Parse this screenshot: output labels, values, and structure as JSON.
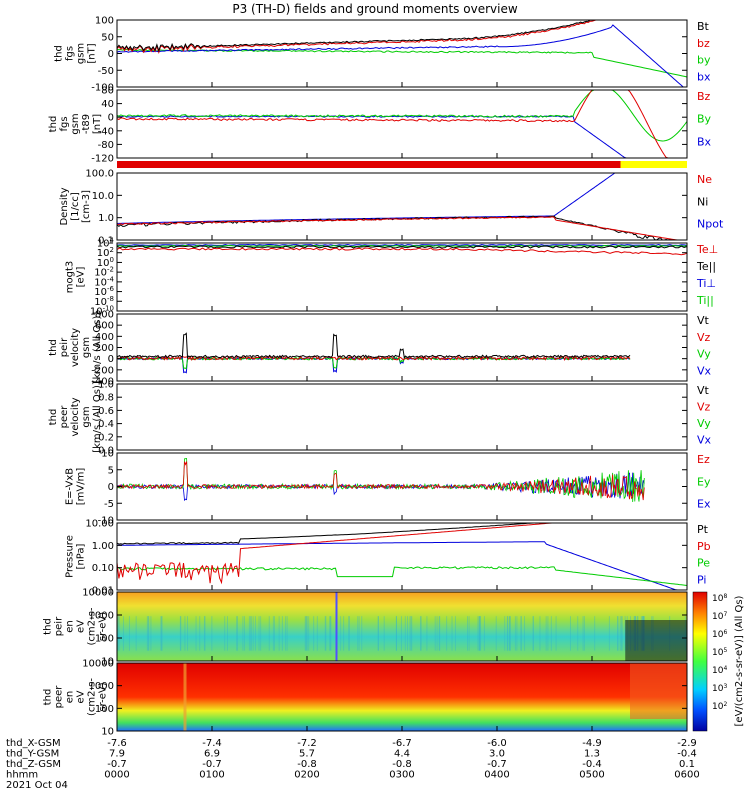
{
  "title": "P3 (TH-D) fields and ground moments overview",
  "colors": {
    "black": "#000000",
    "red": "#e00000",
    "green": "#00cc00",
    "blue": "#0000dd",
    "yellow": "#ffff00"
  },
  "chart_data": [
    {
      "type": "line",
      "ylabel": [
        "thd",
        "fgs",
        "gsm",
        "[nT]"
      ],
      "yticks": [
        "100",
        "50",
        "0",
        "-50",
        "-100"
      ],
      "ylim": [
        -100,
        100
      ],
      "legend": [
        {
          "name": "Bt",
          "color": "black"
        },
        {
          "name": "bz",
          "color": "red"
        },
        {
          "name": "by",
          "color": "green"
        },
        {
          "name": "bx",
          "color": "blue"
        }
      ]
    },
    {
      "type": "line",
      "ylabel": [
        "thd",
        "fgs",
        "gsm",
        "-t89",
        "[nT]"
      ],
      "yticks": [
        "80",
        "40",
        "0",
        "-40",
        "-80",
        "-120"
      ],
      "ylim": [
        -120,
        80
      ],
      "legend": [
        {
          "name": "Bz",
          "color": "red"
        },
        {
          "name": "By",
          "color": "green"
        },
        {
          "name": "Bx",
          "color": "blue"
        }
      ]
    },
    {
      "type": "line",
      "ylabel": [
        "Density",
        "[1/cc]",
        "[cm-3]"
      ],
      "yticks": [
        "100.0",
        "10.0",
        "1.0",
        "0.1"
      ],
      "scale": "log",
      "legend": [
        {
          "name": "Ne",
          "color": "red"
        },
        {
          "name": "Ni",
          "color": "black"
        },
        {
          "name": "Npot",
          "color": "blue"
        }
      ]
    },
    {
      "type": "line",
      "ylabel": [
        "mogt3",
        "[eV]"
      ],
      "yticks": [
        "10^4",
        "10^2",
        "10^0",
        "10^-2",
        "10^-4",
        "10^-6",
        "10^-8",
        "10^-10"
      ],
      "scale": "log",
      "legend": [
        {
          "name": "Te⊥",
          "color": "red"
        },
        {
          "name": "Te||",
          "color": "black"
        },
        {
          "name": "Ti⊥",
          "color": "blue"
        },
        {
          "name": "Ti||",
          "color": "green"
        }
      ]
    },
    {
      "type": "line",
      "ylabel": [
        "thd",
        "peir",
        "velocity",
        "gsm",
        "[km/s (All Qs)]"
      ],
      "yticks": [
        "800",
        "600",
        "400",
        "200",
        "0",
        "-200",
        "-400"
      ],
      "ylim": [
        -400,
        800
      ],
      "legend": [
        {
          "name": "Vt",
          "color": "black"
        },
        {
          "name": "Vz",
          "color": "red"
        },
        {
          "name": "Vy",
          "color": "green"
        },
        {
          "name": "Vx",
          "color": "blue"
        }
      ]
    },
    {
      "type": "line",
      "ylabel": [
        "thd",
        "peer",
        "velocity",
        "gsm",
        "[km/s (All Qs)]"
      ],
      "yticks": [
        "1.0",
        "0.8",
        "0.6",
        "0.4",
        "0.2",
        "0.0"
      ],
      "ylim": [
        0,
        1
      ],
      "legend": [
        {
          "name": "Vt",
          "color": "black"
        },
        {
          "name": "Vz",
          "color": "red"
        },
        {
          "name": "Vy",
          "color": "green"
        },
        {
          "name": "Vx",
          "color": "blue"
        }
      ]
    },
    {
      "type": "line",
      "ylabel": [
        "E=-VxB",
        "[mV/m]"
      ],
      "yticks": [
        "10",
        "5",
        "0",
        "-5",
        "-10"
      ],
      "ylim": [
        -10,
        10
      ],
      "legend": [
        {
          "name": "Ez",
          "color": "red"
        },
        {
          "name": "Ey",
          "color": "green"
        },
        {
          "name": "Ex",
          "color": "blue"
        }
      ]
    },
    {
      "type": "line",
      "ylabel": [
        "Pressure",
        "[nPa]"
      ],
      "yticks": [
        "10.00",
        "1.00",
        "0.10",
        "0.01"
      ],
      "scale": "log",
      "legend": [
        {
          "name": "Pt",
          "color": "black"
        },
        {
          "name": "Pb",
          "color": "red"
        },
        {
          "name": "Pe",
          "color": "green"
        },
        {
          "name": "Pi",
          "color": "blue"
        }
      ]
    },
    {
      "type": "heatmap",
      "ylabel": [
        "thd",
        "peir",
        "en",
        "eV",
        "(cm2-s-",
        "sr-eV)"
      ],
      "yticks": [
        "10000",
        "1000",
        "100",
        "10"
      ],
      "scale": "log"
    },
    {
      "type": "heatmap",
      "ylabel": [
        "thd",
        "peer",
        "en",
        "eV",
        "(cm2-s-",
        "sr-eV)"
      ],
      "yticks": [
        "10000",
        "1000",
        "100",
        "10"
      ],
      "scale": "log"
    }
  ],
  "colorbar": {
    "ticks": [
      "10^8",
      "10^7",
      "10^6",
      "10^5",
      "10^4",
      "10^3",
      "10^2"
    ],
    "label": "[eV/(cm2-s-sr-eV)] (All Qs)"
  },
  "xaxis": {
    "rows": [
      {
        "label": "thd_X-GSM",
        "values": [
          "-7.6",
          "-7.4",
          "-7.2",
          "-6.7",
          "-6.0",
          "-4.9",
          "-2.9"
        ]
      },
      {
        "label": "thd_Y-GSM",
        "values": [
          "7.9",
          "6.9",
          "5.7",
          "4.4",
          "3.0",
          "1.3",
          "-0.4"
        ]
      },
      {
        "label": "thd_Z-GSM",
        "values": [
          "-0.7",
          "-0.7",
          "-0.8",
          "-0.8",
          "-0.7",
          "-0.4",
          "0.1"
        ]
      },
      {
        "label": "hhmm",
        "values": [
          "0000",
          "0100",
          "0200",
          "0300",
          "0400",
          "0500",
          "0600"
        ]
      }
    ],
    "date": "2021 Oct 04"
  }
}
